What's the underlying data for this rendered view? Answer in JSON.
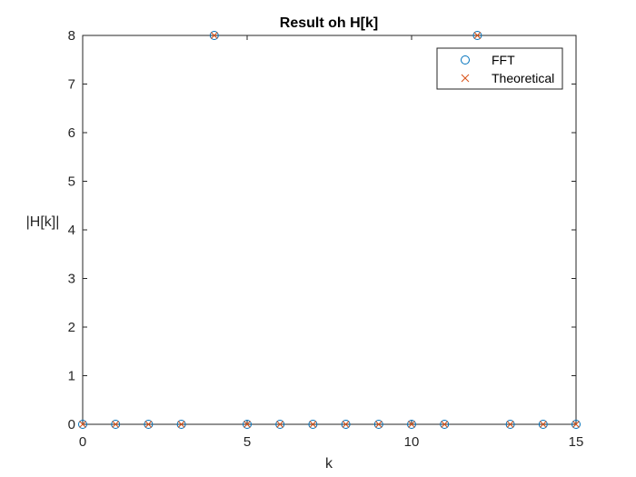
{
  "chart_data": {
    "type": "scatter",
    "title": "Result oh H[k]",
    "xlabel": "k",
    "ylabel": "|H[k]|",
    "xlim": [
      0,
      15
    ],
    "ylim": [
      0,
      8
    ],
    "xticks": [
      "0",
      "5",
      "10",
      "15"
    ],
    "yticks": [
      "0",
      "1",
      "2",
      "3",
      "4",
      "5",
      "6",
      "7",
      "8"
    ],
    "grid": false,
    "legend_position": "top-right",
    "series": [
      {
        "name": "FFT",
        "marker": "circle",
        "color": "#0072BD",
        "x": [
          0,
          1,
          2,
          3,
          4,
          5,
          6,
          7,
          8,
          9,
          10,
          11,
          12,
          13,
          14,
          15
        ],
        "y": [
          0,
          0,
          0,
          0,
          8,
          0,
          0,
          0,
          0,
          0,
          0,
          0,
          8,
          0,
          0,
          0
        ]
      },
      {
        "name": "Theoretical",
        "marker": "x",
        "color": "#D95319",
        "x": [
          0,
          1,
          2,
          3,
          4,
          5,
          6,
          7,
          8,
          9,
          10,
          11,
          12,
          13,
          14,
          15
        ],
        "y": [
          0,
          0,
          0,
          0,
          8,
          0,
          0,
          0,
          0,
          0,
          0,
          0,
          8,
          0,
          0,
          0
        ]
      }
    ]
  }
}
